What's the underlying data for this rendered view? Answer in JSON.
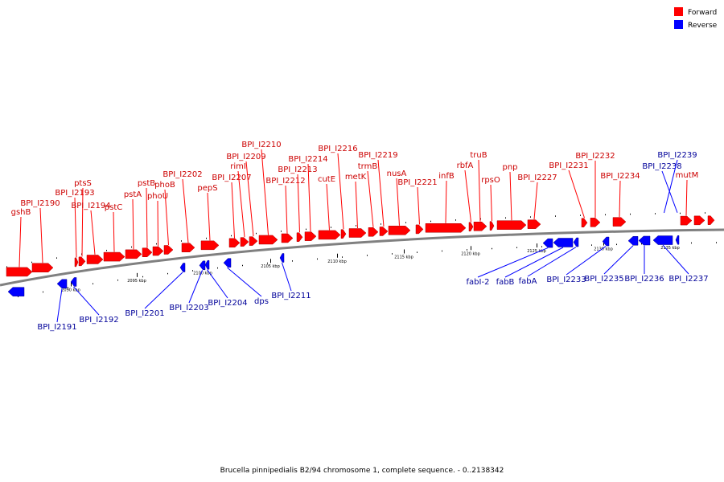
{
  "legend": [
    {
      "label": "Forward",
      "color": "#ff0000"
    },
    {
      "label": "Reverse",
      "color": "#0000ff"
    }
  ],
  "caption": "Brucella pinnipedialis B2/94 chromosome 1, complete sequence. - 0..2138342",
  "colors": {
    "forward": "#ff0000",
    "reverse": "#0000ff",
    "backbone": "#808080",
    "forward_label": "#cc0000",
    "reverse_label": "#000099"
  },
  "tick_labels": [
    "2090 kbp",
    "2095 kbp",
    "2100 kbp",
    "2105 kbp",
    "2110 kbp",
    "2115 kbp",
    "2120 kbp",
    "2125 kbp",
    "2130 kbp",
    "2135 kbp"
  ],
  "forward_genes": [
    {
      "name": "gshB"
    },
    {
      "name": "BPI_I2190"
    },
    {
      "name": "BPI_I2193"
    },
    {
      "name": "ptsS"
    },
    {
      "name": "BPI_I2194"
    },
    {
      "name": "pstC"
    },
    {
      "name": "pstA"
    },
    {
      "name": "pstB"
    },
    {
      "name": "phoU"
    },
    {
      "name": "phoB"
    },
    {
      "name": "BPI_I2202"
    },
    {
      "name": "pepS"
    },
    {
      "name": "BPI_I2207"
    },
    {
      "name": "rimI"
    },
    {
      "name": "BPI_I2209"
    },
    {
      "name": "BPI_I2210"
    },
    {
      "name": "BPI_I2212"
    },
    {
      "name": "BPI_I2213"
    },
    {
      "name": "BPI_I2214"
    },
    {
      "name": "cutE"
    },
    {
      "name": "BPI_I2216"
    },
    {
      "name": "metK"
    },
    {
      "name": "trmB"
    },
    {
      "name": "BPI_I2219"
    },
    {
      "name": "nusA"
    },
    {
      "name": "BPI_I2221"
    },
    {
      "name": "infB"
    },
    {
      "name": "rbfA"
    },
    {
      "name": "truB"
    },
    {
      "name": "rpsO"
    },
    {
      "name": "pnp"
    },
    {
      "name": "BPI_I2227"
    },
    {
      "name": "BPI_I2231"
    },
    {
      "name": "BPI_I2232"
    },
    {
      "name": "BPI_I2234"
    },
    {
      "name": "mutM"
    }
  ],
  "reverse_genes": [
    {
      "name": "BPI_I2191"
    },
    {
      "name": "BPI_I2192"
    },
    {
      "name": "BPI_I2201"
    },
    {
      "name": "BPI_I2203"
    },
    {
      "name": "BPI_I2204"
    },
    {
      "name": "dps"
    },
    {
      "name": "BPI_I2211"
    },
    {
      "name": "fabI-2"
    },
    {
      "name": "fabB"
    },
    {
      "name": "fabA"
    },
    {
      "name": "BPI_I2233"
    },
    {
      "name": "BPI_I2235"
    },
    {
      "name": "BPI_I2236"
    },
    {
      "name": "BPI_I2237"
    },
    {
      "name": "BPI_I2238"
    },
    {
      "name": "BPI_I2239"
    }
  ]
}
